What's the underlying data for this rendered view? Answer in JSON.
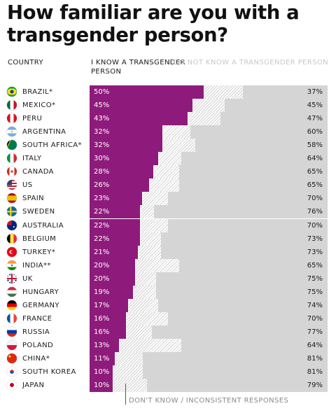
{
  "title": "How familiar are you with a transgender person?",
  "headers": {
    "country": "COUNTRY",
    "know": "I KNOW A TRANSGENDER PERSON",
    "not_know": "I DO NOT KNOW A TRANSGENDER PERSON"
  },
  "footnote": "DON'T KNOW / INCONSISTENT RESPONSES",
  "colors": {
    "know": "#8e1b7c",
    "not_know": "#d5d5d5",
    "dont_know_pattern": "#d0d0d0"
  },
  "chart_data": {
    "type": "bar",
    "orientation": "horizontal",
    "stacked": true,
    "title": "How familiar are you with a transgender person?",
    "value_unit": "%",
    "series": [
      {
        "name": "I KNOW A TRANSGENDER PERSON",
        "color": "#8e1b7c",
        "values": [
          50,
          45,
          43,
          32,
          32,
          30,
          28,
          26,
          23,
          22,
          22,
          22,
          21,
          20,
          20,
          19,
          17,
          16,
          16,
          13,
          11,
          10,
          10
        ]
      },
      {
        "name": "DON'T KNOW / INCONSISTENT RESPONSES",
        "color": "#d0d0d0",
        "values": [
          13,
          10,
          10,
          8,
          10,
          6,
          7,
          9,
          7,
          2,
          8,
          5,
          6,
          15,
          5,
          6,
          9,
          14,
          7,
          23,
          8,
          9,
          11
        ]
      },
      {
        "name": "I DO NOT KNOW A TRANSGENDER PERSON",
        "color": "#d5d5d5",
        "values": [
          37,
          45,
          47,
          60,
          58,
          64,
          65,
          65,
          70,
          76,
          70,
          73,
          73,
          65,
          75,
          75,
          74,
          70,
          77,
          64,
          81,
          81,
          79
        ]
      }
    ],
    "categories": [
      {
        "name": "BRAZIL*",
        "flag": "brazil-flag"
      },
      {
        "name": "MEXICO*",
        "flag": "mexico-flag"
      },
      {
        "name": "PERU",
        "flag": "peru-flag"
      },
      {
        "name": "ARGENTINA",
        "flag": "argentina-flag"
      },
      {
        "name": "SOUTH AFRICA*",
        "flag": "south-africa-flag"
      },
      {
        "name": "ITALY",
        "flag": "italy-flag"
      },
      {
        "name": "CANADA",
        "flag": "canada-flag"
      },
      {
        "name": "US",
        "flag": "us-flag"
      },
      {
        "name": "SPAIN",
        "flag": "spain-flag"
      },
      {
        "name": "SWEDEN",
        "flag": "sweden-flag"
      },
      {
        "name": "AUSTRALIA",
        "flag": "australia-flag"
      },
      {
        "name": "BELGIUM",
        "flag": "belgium-flag"
      },
      {
        "name": "TURKEY*",
        "flag": "turkey-flag"
      },
      {
        "name": "INDIA**",
        "flag": "india-flag"
      },
      {
        "name": "UK",
        "flag": "uk-flag"
      },
      {
        "name": "HUNGARY",
        "flag": "hungary-flag"
      },
      {
        "name": "GERMANY",
        "flag": "germany-flag"
      },
      {
        "name": "FRANCE",
        "flag": "france-flag"
      },
      {
        "name": "RUSSIA",
        "flag": "russia-flag"
      },
      {
        "name": "POLAND",
        "flag": "poland-flag"
      },
      {
        "name": "CHINA*",
        "flag": "china-flag"
      },
      {
        "name": "SOUTH KOREA",
        "flag": "south-korea-flag"
      },
      {
        "name": "JAPAN",
        "flag": "japan-flag"
      }
    ],
    "know_labels": [
      "50%",
      "45%",
      "43%",
      "32%",
      "32%",
      "30%",
      "28%",
      "26%",
      "23%",
      "22%",
      "22%",
      "22%",
      "21%",
      "20%",
      "20%",
      "19%",
      "17%",
      "16%",
      "16%",
      "13%",
      "11%",
      "10%",
      "10%"
    ],
    "not_know_labels": [
      "37%",
      "45%",
      "47%",
      "60%",
      "58%",
      "64%",
      "65%",
      "65%",
      "70%",
      "76%",
      "70%",
      "73%",
      "73%",
      "65%",
      "75%",
      "75%",
      "74%",
      "70%",
      "77%",
      "64%",
      "81%",
      "81%",
      "79%"
    ],
    "xlim": [
      0,
      100
    ],
    "legend": "column headers at top"
  }
}
